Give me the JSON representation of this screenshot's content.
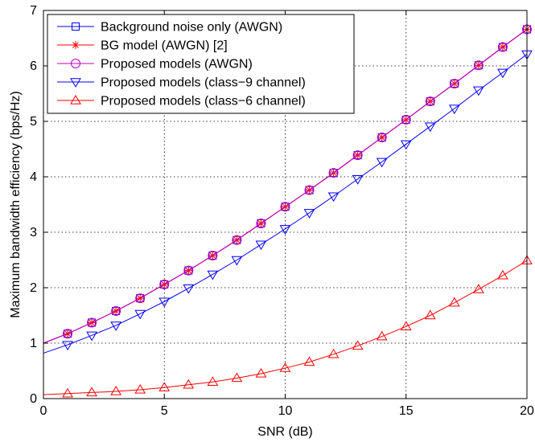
{
  "chart_data": {
    "type": "line",
    "xlabel": "SNR (dB)",
    "ylabel": "Maximum bandwidth efficiency (bps/Hz)",
    "xlim": [
      0,
      20
    ],
    "ylim": [
      0,
      7
    ],
    "xticks": [
      "0",
      "5",
      "10",
      "15",
      "20"
    ],
    "yticks": [
      "0",
      "1",
      "2",
      "3",
      "4",
      "5",
      "6",
      "7"
    ],
    "grid": true,
    "legend_position": "top-left",
    "x": [
      0,
      1,
      2,
      3,
      4,
      5,
      6,
      7,
      8,
      9,
      10,
      11,
      12,
      13,
      14,
      15,
      16,
      17,
      18,
      19,
      20
    ],
    "series": [
      {
        "name": "Background noise only (AWGN)",
        "color": "#0000ff",
        "marker": "square",
        "values": [
          1.0,
          1.17,
          1.37,
          1.58,
          1.81,
          2.06,
          2.31,
          2.58,
          2.86,
          3.16,
          3.46,
          3.76,
          4.07,
          4.39,
          4.71,
          5.03,
          5.36,
          5.68,
          6.01,
          6.34,
          6.66
        ]
      },
      {
        "name": "BG model (AWGN) [2]",
        "color": "#ff0000",
        "marker": "asterisk",
        "values": [
          1.0,
          1.17,
          1.37,
          1.58,
          1.81,
          2.06,
          2.31,
          2.58,
          2.86,
          3.16,
          3.46,
          3.76,
          4.07,
          4.39,
          4.71,
          5.03,
          5.36,
          5.68,
          6.01,
          6.34,
          6.66
        ]
      },
      {
        "name": "Proposed models (AWGN)",
        "color": "#bf00bf",
        "marker": "circle",
        "values": [
          1.0,
          1.17,
          1.37,
          1.58,
          1.81,
          2.06,
          2.31,
          2.58,
          2.86,
          3.16,
          3.46,
          3.76,
          4.07,
          4.39,
          4.71,
          5.03,
          5.36,
          5.68,
          6.01,
          6.34,
          6.66
        ]
      },
      {
        "name": "Proposed models (class−9 channel)",
        "color": "#0000ff",
        "marker": "triangle-down",
        "values": [
          0.82,
          0.97,
          1.14,
          1.32,
          1.53,
          1.75,
          1.99,
          2.24,
          2.5,
          2.78,
          3.06,
          3.35,
          3.65,
          3.96,
          4.27,
          4.59,
          4.91,
          5.23,
          5.56,
          5.88,
          6.21
        ]
      },
      {
        "name": "Proposed models (class−6 channel)",
        "color": "#ff0000",
        "marker": "triangle-up",
        "values": [
          0.07,
          0.09,
          0.11,
          0.13,
          0.16,
          0.2,
          0.25,
          0.3,
          0.37,
          0.45,
          0.55,
          0.66,
          0.8,
          0.95,
          1.12,
          1.3,
          1.5,
          1.73,
          1.97,
          2.22,
          2.49
        ]
      }
    ]
  }
}
